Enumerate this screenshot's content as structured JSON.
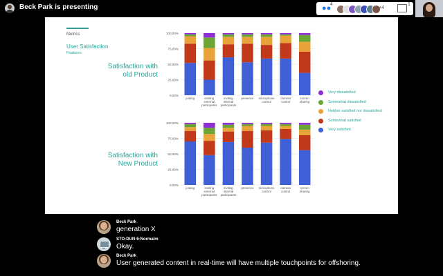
{
  "topbar": {
    "presenting_text": "Beck Park is presenting",
    "participants_count": "4",
    "more_label": "+4",
    "chat_count": "1",
    "avatar_colors": [
      "#8d6e63",
      "#e0e0e0",
      "#7e57c2",
      "#90a4ae",
      "#3f51b5",
      "#607d8b",
      "#795548"
    ]
  },
  "slide": {
    "section_label": "Metrics",
    "title": "User Satisfaction",
    "subtitle": "Features",
    "chart_old_title_line1": "Satisfaction with",
    "chart_old_title_line2": "old Product",
    "chart_new_title_line1": "Satisfaction with",
    "chart_new_title_line2": "New Product"
  },
  "colors": {
    "very_satisfied": "#3f5fd6",
    "somewhat_satisfied": "#c0391b",
    "neutral": "#e8a33b",
    "somewhat_dissatisfied": "#6aa535",
    "very_dissatisfied": "#8e2fd6",
    "accent": "#26a69a"
  },
  "legend": [
    {
      "label": "Very dissatisfied",
      "color": "#8e2fd6"
    },
    {
      "label": "Somewhat dissatisfied",
      "color": "#6aa535"
    },
    {
      "label": "Neither satisfied nor dissatisfied",
      "color": "#e8a33b"
    },
    {
      "label": "Somewhat satisfied",
      "color": "#c0391b"
    },
    {
      "label": "Very satisfied",
      "color": "#3f5fd6"
    }
  ],
  "chart_data": [
    {
      "type": "bar",
      "stacked": true,
      "title": "Satisfaction with old Product",
      "categories": [
        "joining",
        "inviting external participants",
        "inviting internal participants",
        "presence",
        "microphone control",
        "camera control",
        "screen sharing"
      ],
      "yticks": [
        "0.00%",
        "25.00%",
        "50.00%",
        "75.00%",
        "100.00%"
      ],
      "ylim": [
        0,
        100
      ],
      "series": [
        {
          "name": "Very satisfied",
          "values": [
            52,
            25,
            61,
            53,
            59,
            59,
            36
          ]
        },
        {
          "name": "Somewhat satisfied",
          "values": [
            31,
            31,
            21,
            30,
            22,
            25,
            34
          ]
        },
        {
          "name": "Neither satisfied nor dissatisfied",
          "values": [
            12,
            20,
            12,
            11,
            13,
            12,
            16
          ]
        },
        {
          "name": "Somewhat dissatisfied",
          "values": [
            3,
            17,
            4,
            4,
            4,
            2,
            11
          ]
        },
        {
          "name": "Very dissatisfied",
          "values": [
            2,
            7,
            2,
            2,
            2,
            2,
            3
          ]
        }
      ],
      "legend_position": "right"
    },
    {
      "type": "bar",
      "stacked": true,
      "title": "Satisfaction with New Product",
      "categories": [
        "joining",
        "inviting external participants",
        "inviting internal participants",
        "presence",
        "microphone control",
        "camera control",
        "screen sharing"
      ],
      "yticks": [
        "0.00%",
        "25.00%",
        "50.00%",
        "75.00%",
        "100.00%"
      ],
      "ylim": [
        0,
        100
      ],
      "series": [
        {
          "name": "Very satisfied",
          "values": [
            70,
            48,
            69,
            60,
            68,
            74,
            56
          ]
        },
        {
          "name": "Somewhat satisfied",
          "values": [
            17,
            23,
            17,
            27,
            20,
            16,
            24
          ]
        },
        {
          "name": "Neither satisfied nor dissatisfied",
          "values": [
            6,
            11,
            6,
            8,
            7,
            5,
            9
          ]
        },
        {
          "name": "Somewhat dissatisfied",
          "values": [
            5,
            10,
            5,
            3,
            3,
            3,
            8
          ]
        },
        {
          "name": "Very dissatisfied",
          "values": [
            2,
            8,
            3,
            2,
            2,
            2,
            3
          ]
        }
      ],
      "legend_position": "right"
    }
  ],
  "chat": [
    {
      "name": "Beck Park",
      "text": "generation X",
      "avatar": "person"
    },
    {
      "name": "STO-DUN-6-Normalm",
      "text": "Okay.",
      "avatar": "device"
    },
    {
      "name": "Beck Park",
      "text": "User generated content in real-time will have multiple touchpoints for offshoring.",
      "avatar": "person"
    }
  ]
}
